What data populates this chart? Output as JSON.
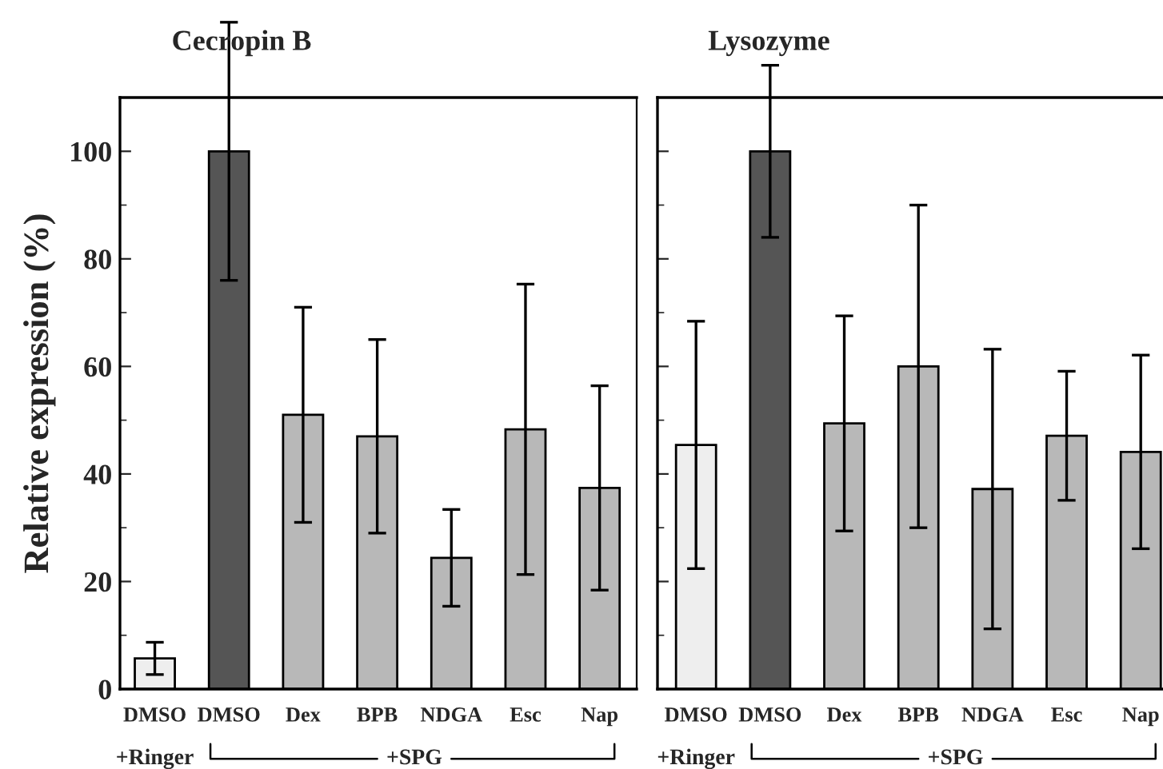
{
  "chart_data": [
    {
      "type": "bar",
      "title": "Cecropin B",
      "ylabel": "Relative expression (%)",
      "categories": [
        "DMSO",
        "DMSO",
        "Dex",
        "BPB",
        "NDGA",
        "Esc",
        "Nap"
      ],
      "values": [
        5.7,
        100,
        51,
        47,
        24.4,
        48.3,
        37.4
      ],
      "errors": [
        3,
        24,
        20,
        18,
        9,
        27,
        19
      ],
      "colors": [
        "#eeeeee",
        "#555555",
        "#b8b8b8",
        "#b8b8b8",
        "#b8b8b8",
        "#b8b8b8",
        "#b8b8b8"
      ],
      "ylim": [
        0,
        110
      ],
      "yticks": [
        0,
        20,
        40,
        60,
        80,
        100
      ],
      "annotations": [
        "+Ringer",
        "+SPG"
      ]
    },
    {
      "type": "bar",
      "title": "Lysozyme",
      "categories": [
        "DMSO",
        "DMSO",
        "Dex",
        "BPB",
        "NDGA",
        "Esc",
        "Nap"
      ],
      "values": [
        45.4,
        100,
        49.4,
        60,
        37.2,
        47.1,
        44.1
      ],
      "errors": [
        23,
        16,
        20,
        30,
        26,
        12,
        18
      ],
      "colors": [
        "#eeeeee",
        "#555555",
        "#b8b8b8",
        "#b8b8b8",
        "#b8b8b8",
        "#b8b8b8",
        "#b8b8b8"
      ],
      "ylim": [
        0,
        110
      ],
      "yticks": [
        0,
        20,
        40,
        60,
        80,
        100
      ],
      "tick_labels": "x",
      "annotations": [
        "+Ringer",
        "+SPG"
      ]
    }
  ]
}
